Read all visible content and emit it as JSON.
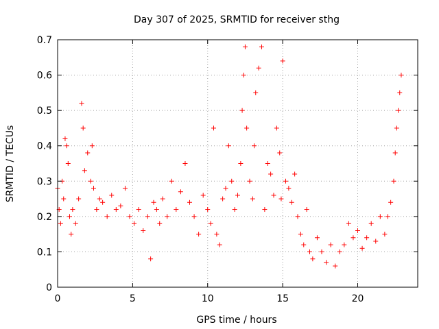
{
  "chart_data": {
    "type": "scatter",
    "title": "Day 307 of 2025, SRMTID for receiver sthg",
    "xlabel": "GPS time / hours",
    "ylabel": "SRMTID / TECUs",
    "xlim": [
      0,
      24
    ],
    "ylim": [
      0,
      0.7
    ],
    "xticks": [
      0,
      5,
      10,
      15,
      20
    ],
    "yticks": [
      0,
      0.1,
      0.2,
      0.3,
      0.4,
      0.5,
      0.6,
      0.7
    ],
    "grid": true,
    "marker": "+",
    "color": "#ff0000",
    "series": [
      {
        "name": "SRMTID",
        "x": [
          0.0,
          0.1,
          0.2,
          0.3,
          0.4,
          0.5,
          0.6,
          0.7,
          0.8,
          0.9,
          1.0,
          1.2,
          1.4,
          1.6,
          1.7,
          1.8,
          2.0,
          2.2,
          2.3,
          2.4,
          2.6,
          2.8,
          3.0,
          3.3,
          3.6,
          3.9,
          4.2,
          4.5,
          4.8,
          5.1,
          5.4,
          5.7,
          6.0,
          6.2,
          6.4,
          6.6,
          6.8,
          7.0,
          7.3,
          7.6,
          7.9,
          8.2,
          8.5,
          8.8,
          9.1,
          9.4,
          9.7,
          10.0,
          10.2,
          10.4,
          10.6,
          10.8,
          11.0,
          11.2,
          11.4,
          11.6,
          11.8,
          12.0,
          12.2,
          12.3,
          12.4,
          12.5,
          12.6,
          12.8,
          13.0,
          13.1,
          13.2,
          13.4,
          13.6,
          13.8,
          14.0,
          14.2,
          14.4,
          14.6,
          14.8,
          14.9,
          15.0,
          15.2,
          15.4,
          15.6,
          15.8,
          16.0,
          16.2,
          16.4,
          16.6,
          16.8,
          17.0,
          17.3,
          17.6,
          17.9,
          18.2,
          18.5,
          18.8,
          19.1,
          19.4,
          19.7,
          20.0,
          20.3,
          20.6,
          20.9,
          21.2,
          21.5,
          21.8,
          22.0,
          22.2,
          22.4,
          22.5,
          22.6,
          22.7,
          22.8,
          22.9
        ],
        "y": [
          0.28,
          0.22,
          0.18,
          0.3,
          0.25,
          0.42,
          0.4,
          0.35,
          0.2,
          0.15,
          0.22,
          0.18,
          0.25,
          0.52,
          0.45,
          0.33,
          0.38,
          0.3,
          0.4,
          0.28,
          0.22,
          0.25,
          0.24,
          0.2,
          0.26,
          0.22,
          0.23,
          0.28,
          0.2,
          0.18,
          0.22,
          0.16,
          0.2,
          0.08,
          0.24,
          0.22,
          0.18,
          0.25,
          0.2,
          0.3,
          0.22,
          0.27,
          0.35,
          0.24,
          0.2,
          0.15,
          0.26,
          0.22,
          0.18,
          0.45,
          0.15,
          0.12,
          0.25,
          0.28,
          0.4,
          0.3,
          0.22,
          0.26,
          0.35,
          0.5,
          0.6,
          0.68,
          0.45,
          0.3,
          0.25,
          0.4,
          0.55,
          0.62,
          0.68,
          0.22,
          0.35,
          0.32,
          0.26,
          0.45,
          0.38,
          0.25,
          0.64,
          0.3,
          0.28,
          0.24,
          0.32,
          0.2,
          0.15,
          0.12,
          0.22,
          0.1,
          0.08,
          0.14,
          0.1,
          0.07,
          0.12,
          0.06,
          0.1,
          0.12,
          0.18,
          0.14,
          0.16,
          0.11,
          0.14,
          0.18,
          0.13,
          0.2,
          0.15,
          0.2,
          0.24,
          0.3,
          0.38,
          0.45,
          0.5,
          0.55,
          0.6
        ]
      }
    ]
  }
}
